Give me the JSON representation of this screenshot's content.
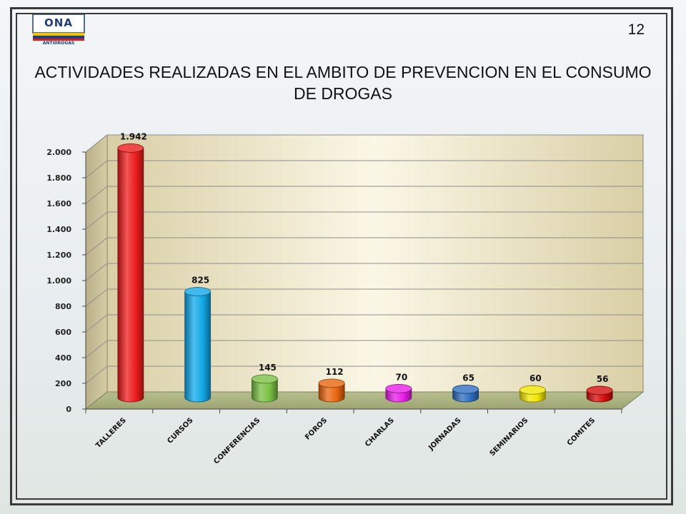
{
  "logo": {
    "text": "ONA",
    "subtitle": "ANTIDROGAS"
  },
  "page_number": "12",
  "title": "ACTIVIDADES REALIZADAS EN EL AMBITO DE PREVENCION EN EL CONSUMO DE DROGAS",
  "chart_data": {
    "type": "bar",
    "title": "",
    "xlabel": "",
    "ylabel": "",
    "ylim": [
      0,
      2000
    ],
    "y_ticks": [
      0,
      200,
      400,
      600,
      800,
      1000,
      1200,
      1400,
      1600,
      1800,
      2000
    ],
    "y_tick_labels": [
      "0",
      "200",
      "400",
      "600",
      "800",
      "1.000",
      "1.200",
      "1.400",
      "1.600",
      "1.800",
      "2.000"
    ],
    "grid": true,
    "legend": "none",
    "categories": [
      "TALLERES",
      "CURSOS",
      "CONFERENCIAS",
      "FOROS",
      "CHARLAS",
      "JORNADAS",
      "SEMINARIOS",
      "COMITES"
    ],
    "values": [
      1942,
      825,
      145,
      112,
      70,
      65,
      60,
      56
    ],
    "value_labels": [
      "1.942",
      "825",
      "145",
      "112",
      "70",
      "65",
      "60",
      "56"
    ],
    "colors": [
      "#ee1c1c",
      "#12a8e8",
      "#7ac142",
      "#e8650e",
      "#e81ee8",
      "#2f6fc0",
      "#f2e600",
      "#d40c0c"
    ]
  }
}
